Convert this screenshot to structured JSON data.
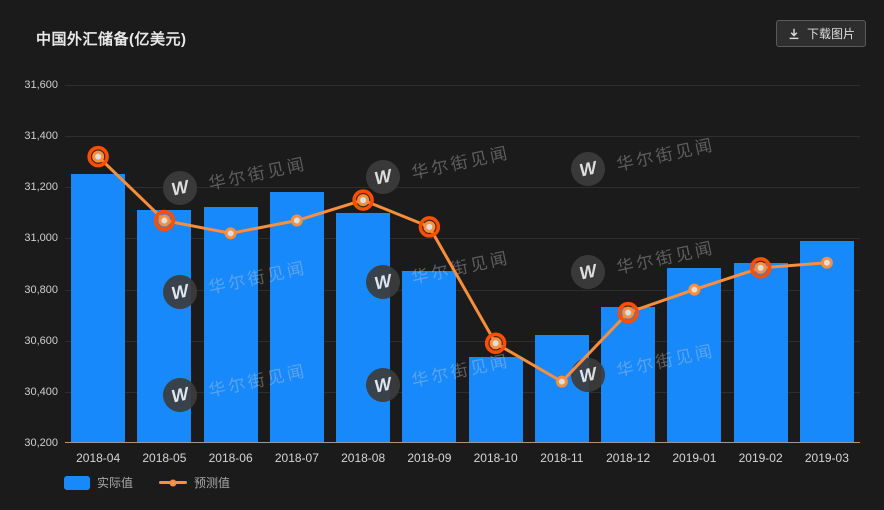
{
  "header": {
    "title": "中国外汇储备(亿美元)",
    "download_label": "下载图片"
  },
  "legend": {
    "actual_label": "实际值",
    "forecast_label": "预测值"
  },
  "watermark": {
    "text": "华尔街见闻",
    "logo_letter": "W"
  },
  "colors": {
    "background": "#1b1b1b",
    "bar": "#1789fa",
    "line": "#f98e3d",
    "highlight_ring": "#ff4e00",
    "marker_center": "#dedede",
    "axis_text": "#cfcfcf",
    "grid": "#2e2e2e"
  },
  "chart_data": {
    "type": "bar",
    "title": "中国外汇储备(亿美元)",
    "xlabel": "",
    "ylabel": "",
    "ylim": [
      30200,
      31600
    ],
    "ytick_step": 200,
    "grid": true,
    "legend_position": "bottom-left",
    "categories": [
      "2018-04",
      "2018-05",
      "2018-06",
      "2018-07",
      "2018-08",
      "2018-09",
      "2018-10",
      "2018-11",
      "2018-12",
      "2019-01",
      "2019-02",
      "2019-03"
    ],
    "series": [
      {
        "name": "实际值",
        "chart_type": "bar",
        "values": [
          31249,
          31106,
          31121,
          31179,
          31097,
          30870,
          30531,
          30617,
          30727,
          30879,
          30902,
          30988
        ]
      },
      {
        "name": "预测值",
        "chart_type": "line",
        "values": [
          31320,
          31070,
          31020,
          31070,
          31150,
          31045,
          30590,
          30440,
          30710,
          30800,
          30885,
          30905
        ],
        "emphasis": [
          true,
          true,
          false,
          false,
          true,
          true,
          true,
          false,
          true,
          false,
          true,
          false
        ]
      }
    ]
  }
}
